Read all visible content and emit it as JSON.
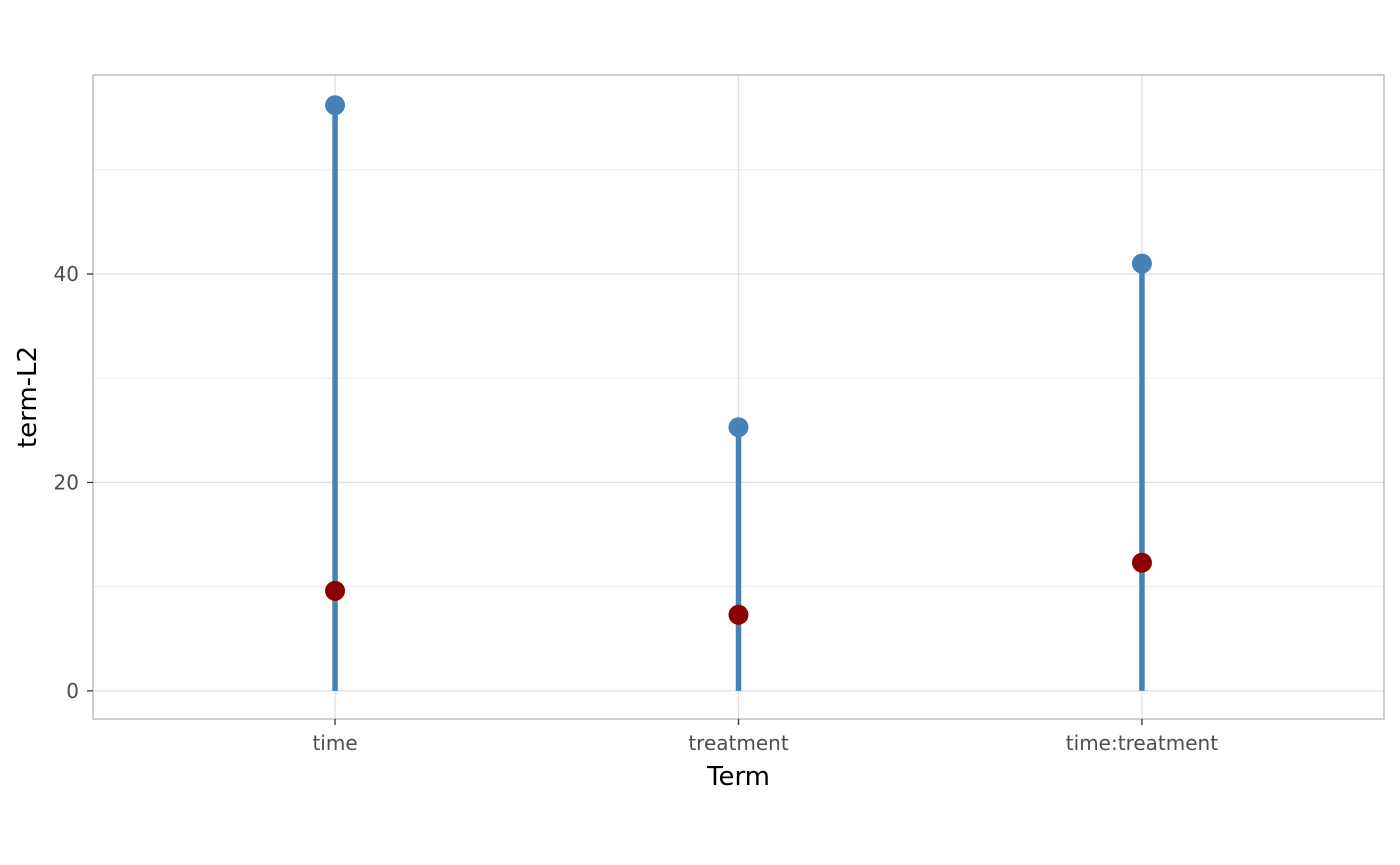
{
  "chart_data": {
    "type": "lollipop",
    "title": "",
    "xlabel": "Term",
    "ylabel": "term-L2",
    "categories": [
      "time",
      "treatment",
      "time:treatment"
    ],
    "series": [
      {
        "values": [
          56.2,
          25.3,
          41.0
        ]
      },
      {
        "values": [
          9.6,
          7.3,
          12.3
        ]
      }
    ],
    "stem_from": 0,
    "ylim": [
      -2.7,
      59.1
    ],
    "yticks": [
      0,
      20,
      40
    ],
    "yticks_labels": [
      "0",
      "20",
      "40"
    ],
    "grid": true,
    "legend": "none",
    "colors": {
      "stem": "#4682b4",
      "upper_point": "#4682b4",
      "lower_point": "#8b0000"
    }
  }
}
